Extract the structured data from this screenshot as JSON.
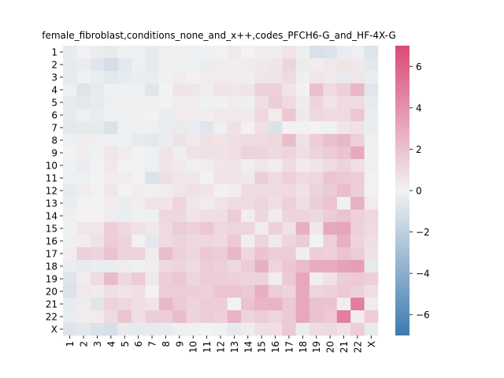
{
  "chart_data": {
    "type": "heatmap",
    "title": "female_fibroblast,conditions_none_and_x++,codes_PFCH6-G_and_HF-4X-G",
    "row_labels": [
      "1",
      "2",
      "3",
      "4",
      "5",
      "6",
      "7",
      "8",
      "9",
      "10",
      "11",
      "12",
      "13",
      "14",
      "15",
      "16",
      "17",
      "18",
      "19",
      "20",
      "21",
      "22",
      "X"
    ],
    "col_labels": [
      "1",
      "2",
      "3",
      "4",
      "5",
      "6",
      "7",
      "8",
      "9",
      "10",
      "11",
      "12",
      "13",
      "14",
      "15",
      "16",
      "17",
      "18",
      "19",
      "20",
      "21",
      "22",
      "X"
    ],
    "values": [
      [
        -0.4,
        0.1,
        -0.3,
        -0.4,
        -0.1,
        -0.1,
        -0.4,
        -0.2,
        -0.1,
        -0.1,
        -0.1,
        0.1,
        0.4,
        0.0,
        0.2,
        0.2,
        0.6,
        -0.2,
        -1.0,
        -0.9,
        -0.3,
        -0.2,
        -0.8
      ],
      [
        -0.5,
        -0.3,
        -0.7,
        -1.2,
        -0.6,
        -0.2,
        -0.4,
        -0.2,
        -0.1,
        -0.2,
        -0.3,
        0.2,
        0.2,
        0.3,
        0.4,
        0.5,
        1.2,
        -0.3,
        0.2,
        0.4,
        0.6,
        0.4,
        -0.6
      ],
      [
        -0.5,
        -0.1,
        -0.3,
        -0.6,
        -0.4,
        -0.3,
        -0.3,
        -0.1,
        0.2,
        0.1,
        0.2,
        0.3,
        0.2,
        0.2,
        0.5,
        0.6,
        1.0,
        -0.2,
        0.5,
        0.4,
        -0.5,
        0.5,
        -0.3
      ],
      [
        -0.2,
        -0.8,
        -0.5,
        -0.1,
        -0.1,
        -0.2,
        -0.7,
        0.0,
        0.6,
        0.5,
        0.2,
        0.6,
        0.5,
        0.6,
        1.4,
        1.4,
        0.6,
        0.1,
        2.1,
        1.0,
        1.4,
        2.4,
        -0.7
      ],
      [
        -0.5,
        -0.6,
        -0.4,
        -0.2,
        -0.2,
        -0.1,
        -0.1,
        0.0,
        0.2,
        0.2,
        -0.1,
        0.1,
        0.3,
        -0.2,
        0.8,
        1.5,
        1.0,
        0.3,
        1.2,
        0.6,
        1.0,
        0.9,
        -0.4
      ],
      [
        -0.4,
        -0.2,
        -0.3,
        -0.1,
        -0.1,
        -0.1,
        0.0,
        -0.3,
        0.3,
        0.3,
        0.2,
        0.4,
        0.4,
        0.4,
        1.1,
        0.3,
        1.8,
        0.4,
        1.1,
        0.9,
        1.0,
        1.8,
        -0.3
      ],
      [
        -0.6,
        -0.5,
        -0.5,
        -0.9,
        -0.2,
        -0.2,
        -0.2,
        -0.3,
        -0.4,
        -0.3,
        -0.7,
        -0.2,
        0.7,
        0.1,
        0.8,
        -0.9,
        0.1,
        0.1,
        0.0,
        -0.1,
        0.5,
        0.7,
        -0.3
      ],
      [
        -0.2,
        0.2,
        -0.2,
        -0.2,
        -0.1,
        -0.4,
        -0.6,
        -0.3,
        0.7,
        0.4,
        0.7,
        0.6,
        0.8,
        1.0,
        1.0,
        1.1,
        2.2,
        0.7,
        1.5,
        2.1,
        2.4,
        1.4,
        -0.2
      ],
      [
        0.0,
        0.2,
        -0.1,
        0.5,
        0.3,
        0.0,
        -0.1,
        0.6,
        -0.2,
        0.7,
        0.7,
        0.7,
        0.8,
        1.3,
        1.2,
        1.0,
        1.2,
        0.8,
        1.3,
        1.6,
        1.9,
        3.0,
        0.1
      ],
      [
        -0.1,
        -0.3,
        0.1,
        0.4,
        0.0,
        0.1,
        -0.2,
        0.6,
        0.4,
        -0.2,
        0.3,
        0.5,
        0.6,
        0.2,
        0.5,
        0.2,
        0.9,
        0.3,
        0.6,
        0.9,
        1.3,
        0.8,
        -0.2
      ],
      [
        -0.2,
        -0.2,
        0.0,
        0.3,
        0.3,
        0.1,
        -0.9,
        0.8,
        0.5,
        0.5,
        0.1,
        0.6,
        0.6,
        0.4,
        1.5,
        0.9,
        1.4,
        1.0,
        1.1,
        1.9,
        1.7,
        1.6,
        0.1
      ],
      [
        -0.4,
        0.3,
        0.1,
        0.5,
        0.0,
        0.2,
        -0.1,
        0.2,
        0.5,
        0.7,
        0.6,
        0.1,
        0.2,
        0.9,
        0.9,
        0.9,
        1.0,
        0.7,
        1.3,
        1.6,
        2.2,
        1.5,
        0.1
      ],
      [
        -0.3,
        0.0,
        0.0,
        0.2,
        -0.3,
        0.2,
        0.6,
        0.6,
        1.2,
        0.5,
        0.3,
        0.6,
        0.9,
        1.0,
        1.2,
        0.8,
        1.4,
        0.8,
        1.5,
        1.9,
        -0.1,
        2.7,
        0.3
      ],
      [
        -0.2,
        0.1,
        0.1,
        0.2,
        -0.3,
        -0.1,
        -0.1,
        1.1,
        1.1,
        0.6,
        0.8,
        0.8,
        1.6,
        0.2,
        1.1,
        0.3,
        1.2,
        1.3,
        1.1,
        1.6,
        1.9,
        1.4,
        1.1
      ],
      [
        -0.1,
        0.5,
        0.5,
        1.5,
        1.1,
        0.7,
        0.4,
        1.0,
        1.6,
        1.4,
        1.8,
        1.1,
        1.2,
        1.2,
        0.3,
        1.4,
        0.7,
        2.8,
        0.5,
        3.1,
        3.2,
        1.4,
        1.0
      ],
      [
        -0.2,
        0.2,
        0.7,
        1.6,
        1.3,
        0.1,
        -0.6,
        1.0,
        1.3,
        1.1,
        1.1,
        1.0,
        1.7,
        0.2,
        1.3,
        0.4,
        1.2,
        1.6,
        0.0,
        1.4,
        2.7,
        1.3,
        0.8
      ],
      [
        0.2,
        1.4,
        1.3,
        2.0,
        1.3,
        1.3,
        0.3,
        2.2,
        1.4,
        1.1,
        1.7,
        1.6,
        2.4,
        1.1,
        1.9,
        1.5,
        1.6,
        -0.2,
        1.5,
        1.4,
        2.0,
        1.6,
        0.7
      ],
      [
        -0.3,
        -0.4,
        -0.3,
        -0.3,
        0.3,
        -0.1,
        0.3,
        1.1,
        1.3,
        0.9,
        1.6,
        1.4,
        1.1,
        1.5,
        2.7,
        1.2,
        1.8,
        2.3,
        2.9,
        2.9,
        3.3,
        3.4,
        -0.5
      ],
      [
        -0.8,
        0.2,
        1.0,
        2.3,
        1.1,
        1.6,
        0.4,
        1.5,
        1.8,
        1.2,
        1.6,
        1.5,
        1.4,
        1.2,
        1.3,
        0.2,
        1.7,
        3.1,
        0.2,
        0.7,
        1.6,
        1.7,
        1.4
      ],
      [
        -0.9,
        0.4,
        0.3,
        0.8,
        0.6,
        0.8,
        0.0,
        1.6,
        1.6,
        1.5,
        1.4,
        1.9,
        1.9,
        1.7,
        2.8,
        1.6,
        1.3,
        3.0,
        1.2,
        1.4,
        1.7,
        1.4,
        0.8
      ],
      [
        -0.4,
        0.3,
        -0.7,
        1.3,
        1.1,
        0.8,
        0.6,
        2.4,
        1.7,
        1.3,
        1.6,
        1.5,
        0.0,
        2.0,
        2.6,
        2.6,
        1.7,
        3.0,
        2.0,
        1.9,
        0.2,
        4.8,
        0.3
      ],
      [
        -0.3,
        0.3,
        0.3,
        1.0,
        1.9,
        0.8,
        1.5,
        1.5,
        2.2,
        1.3,
        1.6,
        1.4,
        2.6,
        1.3,
        1.6,
        1.2,
        1.7,
        3.1,
        2.0,
        1.7,
        4.8,
        0.2,
        1.5
      ],
      [
        -0.8,
        -0.6,
        -0.9,
        -1.1,
        -0.4,
        -0.5,
        -0.5,
        -0.4,
        -0.2,
        -0.1,
        0.0,
        -0.1,
        -0.5,
        0.3,
        0.8,
        0.8,
        1.7,
        -0.3,
        0.9,
        1.0,
        0.7,
        1.6,
        -0.4
      ]
    ],
    "vmin": -7,
    "vmax": 7,
    "colorbar_ticks": [
      -6,
      -4,
      -2,
      0,
      2,
      4,
      6
    ],
    "colormap": {
      "low": "#3d7bb0",
      "mid": "#f2f2f2",
      "high": "#d94a76"
    }
  }
}
